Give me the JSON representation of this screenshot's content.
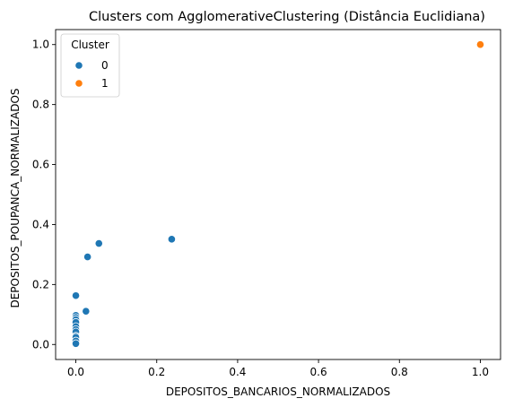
{
  "chart_data": {
    "type": "scatter",
    "title": "Clusters com AgglomerativeClustering (Distância Euclidiana)",
    "xlabel": "DEPOSITOS_BANCARIOS_NORMALIZADOS",
    "ylabel": "DEPOSITOS_POUPANCA_NORMALIZADOS",
    "xlim": [
      -0.05,
      1.05
    ],
    "ylim": [
      -0.05,
      1.05
    ],
    "xticks": [
      0.0,
      0.2,
      0.4,
      0.6,
      0.8,
      1.0
    ],
    "xtick_labels": [
      "0.0",
      "0.2",
      "0.4",
      "0.6",
      "0.8",
      "1.0"
    ],
    "yticks": [
      0.0,
      0.2,
      0.4,
      0.6,
      0.8,
      1.0
    ],
    "ytick_labels": [
      "0.0",
      "0.2",
      "0.4",
      "0.6",
      "0.8",
      "1.0"
    ],
    "grid": false,
    "legend": {
      "title": "Cluster",
      "placement": "top-left"
    },
    "series": [
      {
        "name": "0",
        "color": "#1f77b4",
        "points": [
          {
            "x": 0.237,
            "y": 0.351
          },
          {
            "x": 0.057,
            "y": 0.337
          },
          {
            "x": 0.029,
            "y": 0.292
          },
          {
            "x": 0.025,
            "y": 0.111
          },
          {
            "x": 0.0,
            "y": 0.163
          },
          {
            "x": 0.0,
            "y": 0.097
          },
          {
            "x": 0.0,
            "y": 0.09
          },
          {
            "x": 0.0,
            "y": 0.083
          },
          {
            "x": 0.0,
            "y": 0.074
          },
          {
            "x": 0.0,
            "y": 0.06
          },
          {
            "x": 0.0,
            "y": 0.05
          },
          {
            "x": 0.0,
            "y": 0.042
          },
          {
            "x": 0.0,
            "y": 0.028
          },
          {
            "x": 0.0,
            "y": 0.024
          },
          {
            "x": 0.0,
            "y": 0.012
          },
          {
            "x": 0.0,
            "y": 0.003
          }
        ]
      },
      {
        "name": "1",
        "color": "#ff7f0e",
        "points": [
          {
            "x": 1.0,
            "y": 1.0
          }
        ]
      }
    ]
  }
}
